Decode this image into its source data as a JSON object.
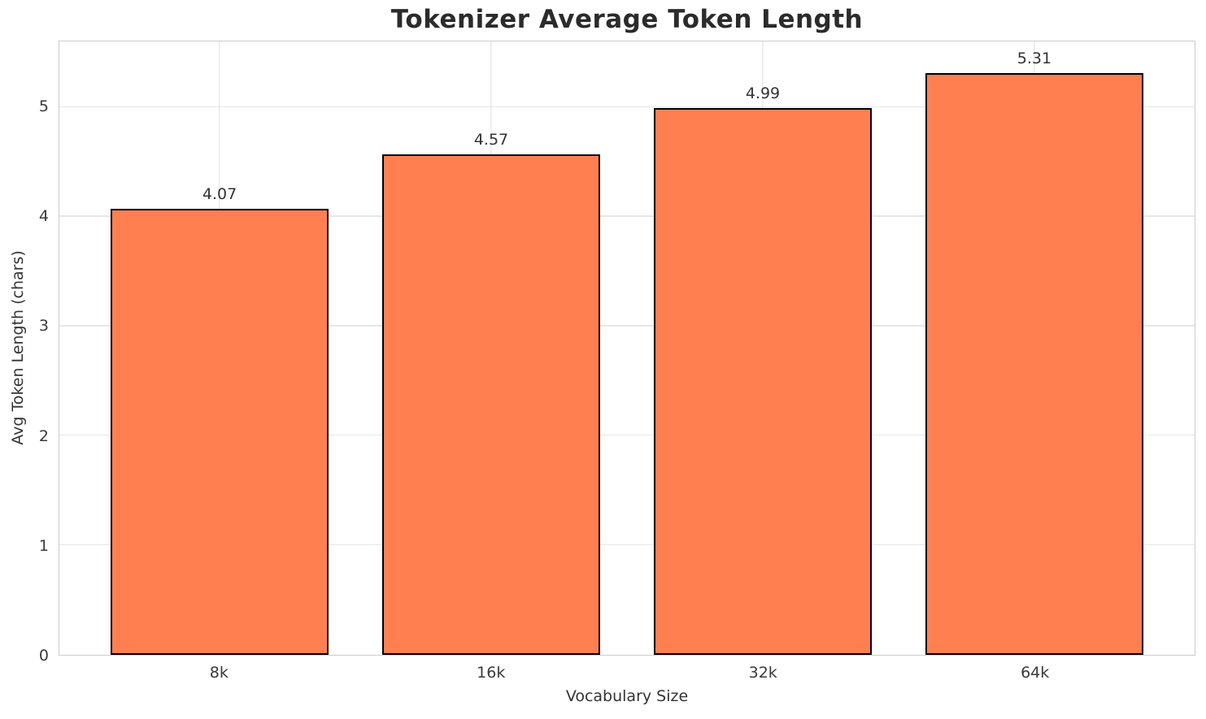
{
  "chart_data": {
    "type": "bar",
    "title": "Tokenizer Average Token Length",
    "xlabel": "Vocabulary Size",
    "ylabel": "Avg Token Length (chars)",
    "categories": [
      "8k",
      "16k",
      "32k",
      "64k"
    ],
    "values": [
      4.07,
      4.57,
      4.99,
      5.31
    ],
    "value_labels": [
      "4.07",
      "4.57",
      "4.99",
      "5.31"
    ],
    "yticks": [
      0,
      1,
      2,
      3,
      4,
      5
    ],
    "ylim": [
      0,
      5.6
    ],
    "xlim": [
      -0.59,
      3.59
    ],
    "bar_width_units": 0.8,
    "grid": true,
    "legend_position": "none",
    "colors": {
      "bar_fill": "#FF7F50",
      "bar_edge": "#000000",
      "grid_h": "#e7e7e7",
      "grid_v": "#dedede",
      "spine": "#cccccc",
      "title_text": "#2b2b2b",
      "tick_text": "#3a3a3a",
      "label_text": "#333333"
    }
  }
}
